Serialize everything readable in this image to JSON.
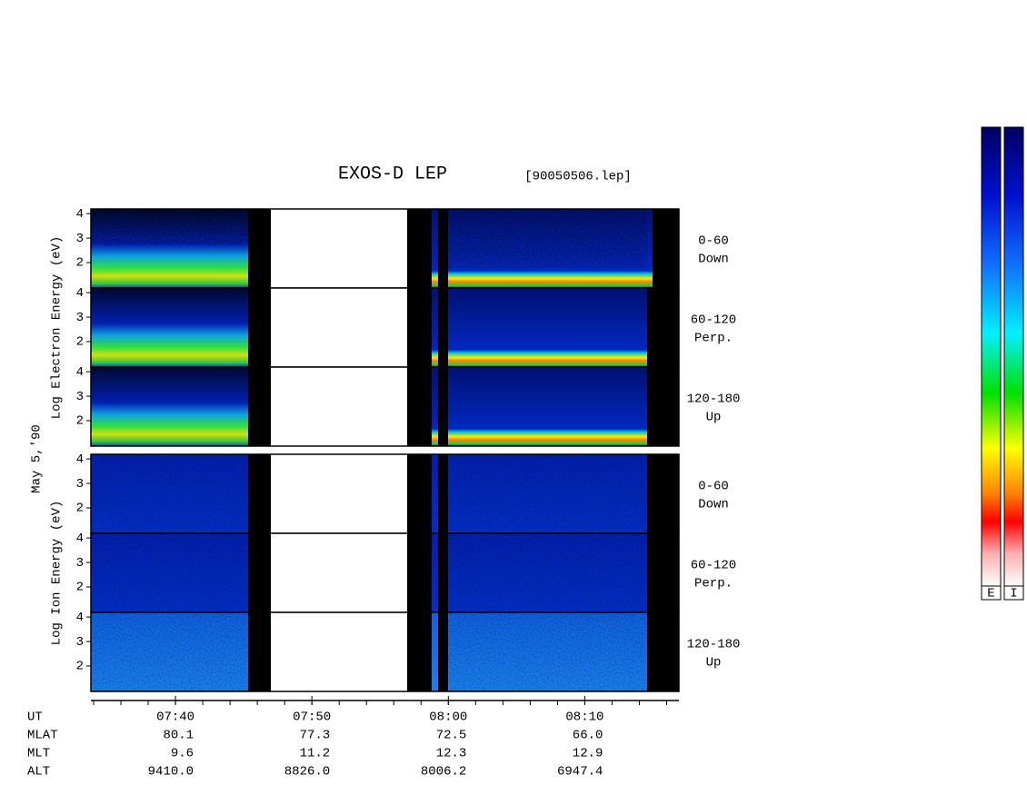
{
  "title": "EXOS-D LEP",
  "file_label": "[90050506.lep]",
  "date_label": "May  5,'90",
  "chart_data": {
    "type": "spectrogram",
    "xlim": [
      33.8,
      76.9
    ],
    "xticks": [
      {
        "value": 40,
        "label": "07:40"
      },
      {
        "value": 50,
        "label": "07:50"
      },
      {
        "value": 60,
        "label": "08:00"
      },
      {
        "value": 70,
        "label": "08:10"
      }
    ],
    "ylim": [
      0.96,
      4.19
    ],
    "yticks": [
      2,
      3,
      4
    ],
    "groups": [
      {
        "ylabel": "Log  Electron  Energy (eV)",
        "species": "electron",
        "panels": [
          {
            "name": "0-60",
            "direction": "Down"
          },
          {
            "name": "60-120",
            "direction": "Perp."
          },
          {
            "name": "120-180",
            "direction": "Up"
          }
        ]
      },
      {
        "ylabel": "Log  Ion  Energy (eV)",
        "species": "ion",
        "panels": [
          {
            "name": "0-60",
            "direction": "Down"
          },
          {
            "name": "60-120",
            "direction": "Perp."
          },
          {
            "name": "120-180",
            "direction": "Up"
          }
        ]
      }
    ]
  },
  "orbit": {
    "rows": [
      {
        "label": "UT"
      },
      {
        "label": "MLAT",
        "values": [
          "80.1",
          "77.3",
          "72.5",
          "66.0"
        ]
      },
      {
        "label": "MLT",
        "values": [
          "9.6",
          "11.2",
          "12.3",
          "12.9"
        ]
      },
      {
        "label": "ALT",
        "values": [
          "9410.0",
          "8826.0",
          "8006.2",
          "6947.4"
        ]
      }
    ]
  },
  "colorbars": [
    "E",
    "I"
  ]
}
